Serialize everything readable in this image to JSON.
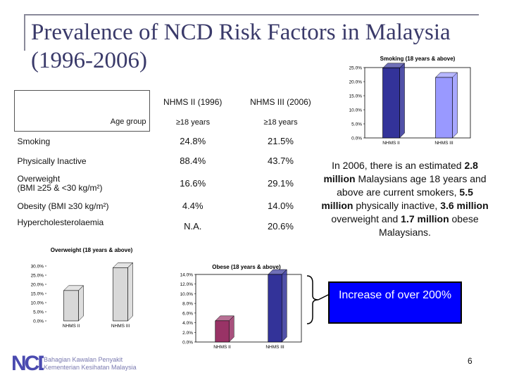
{
  "title": {
    "line1": "Prevalence of NCD Risk Factors in Malaysia",
    "line2": "(1996-2006)"
  },
  "table": {
    "col_headers": [
      "NHMS II (1996)",
      "NHMS III (2006)"
    ],
    "age_label": "Age group",
    "age_values": [
      "≥18 years",
      "≥18 years"
    ],
    "rows": [
      {
        "label": "Smoking",
        "v1996": "24.8%",
        "v2006": "21.5%"
      },
      {
        "label": "Physically Inactive",
        "v1996": "88.4%",
        "v2006": "43.7%"
      },
      {
        "label": "Overweight",
        "label2": "(BMI ≥25 & <30 kg/m²)",
        "v1996": "16.6%",
        "v2006": "29.1%"
      },
      {
        "label": "Obesity (BMI  ≥30 kg/m²)",
        "v1996": "4.4%",
        "v2006": "14.0%"
      },
      {
        "label": "Hypercholesterolaemia",
        "v1996": "N.A.",
        "v2006": "20.6%"
      }
    ]
  },
  "side_text": {
    "p1": "In 2006, there is an estimated ",
    "b1": "2.8 million",
    "p2": " Malaysians age 18 years and above are current smokers, ",
    "b2": "5.5 million",
    "p3": " physically inactive, ",
    "b3": "3.6 million",
    "p4": " overweight and ",
    "b4": "1.7 million",
    "p5": " obese Malaysians."
  },
  "callout": "Increase of over 200%",
  "page_number": "6",
  "logo": {
    "letters": "NCD",
    "line1": "Bahagian Kawalan Penyakit",
    "line2": "Kementerian Kesihatan Malaysia"
  },
  "colors": {
    "navy": "#333399",
    "maroon": "#993366",
    "gray": "#c0c0c0",
    "purple": "#9999ff",
    "callout_bg": "#0000ff"
  },
  "chart_data": [
    {
      "type": "bar",
      "title": "Smoking (18 years & above)",
      "categories": [
        "NHMS II",
        "NHMS III"
      ],
      "values": [
        24.8,
        21.5
      ],
      "ylim": [
        0,
        25
      ],
      "yticks": [
        "0.0%",
        "5.0%",
        "10.0%",
        "15.0%",
        "20.0%",
        "25.0%"
      ],
      "bar_colors": [
        "#333399",
        "#9999ff"
      ]
    },
    {
      "type": "bar",
      "title": "Overweight  (18 years & above)",
      "categories": [
        "NHMS II",
        "NHMS III"
      ],
      "values": [
        16.6,
        29.1
      ],
      "ylim": [
        0,
        30
      ],
      "yticks": [
        "0.0%",
        "5.0%",
        "10.0%",
        "15.0%",
        "20.0%",
        "25.0%",
        "30.0%"
      ],
      "bar_colors": [
        "#d8d8d8",
        "#d8d8d8"
      ]
    },
    {
      "type": "bar",
      "title": "Obese (18 years & above)",
      "categories": [
        "NHMS II",
        "NHMS III"
      ],
      "values": [
        4.4,
        14.0
      ],
      "ylim": [
        0,
        14
      ],
      "yticks": [
        "0.0%",
        "2.0%",
        "4.0%",
        "6.0%",
        "8.0%",
        "10.0%",
        "12.0%",
        "14.0%"
      ],
      "bar_colors": [
        "#993366",
        "#333399"
      ]
    }
  ]
}
